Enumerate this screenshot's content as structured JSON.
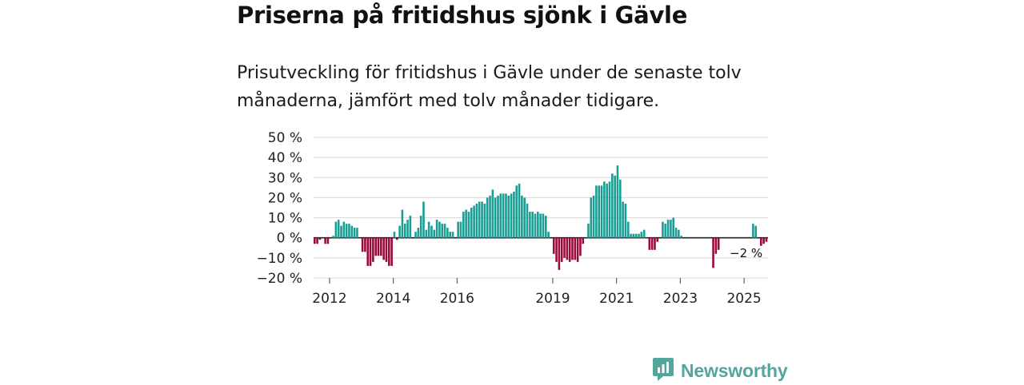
{
  "title": "Priserna på fritidshus sjönk i Gävle",
  "subtitle": "Prisutveckling för fritidshus i Gävle under de senaste tolv månaderna, jämfört med tolv månader tidigare.",
  "logo_text": "Newsworthy",
  "colors": {
    "positive": "#1a9e94",
    "negative": "#9a0a3c",
    "brand": "#53a69c"
  },
  "chart_data": {
    "type": "bar",
    "title": "Priserna på fritidshus sjönk i Gävle",
    "xlabel": "",
    "ylabel": "",
    "ylim": [
      -20,
      50
    ],
    "y_ticks": [
      50,
      40,
      30,
      20,
      10,
      0,
      -10,
      -20
    ],
    "y_tick_labels": [
      "50 %",
      "40 %",
      "30 %",
      "20 %",
      "10 %",
      "0 %",
      "−10 %",
      "−20 %"
    ],
    "x_ticks": [
      "2012",
      "2014",
      "2016",
      "2019",
      "2021",
      "2023",
      "2025"
    ],
    "grid": true,
    "annotation": "−2 %",
    "series": [
      {
        "values": [
          -3,
          -3,
          -1,
          null,
          -3,
          -3,
          null,
          1,
          8,
          9,
          6,
          8,
          7,
          7,
          6,
          5,
          5,
          null,
          -7,
          -7,
          -14,
          -14,
          -12,
          -9,
          -9,
          -9,
          -11,
          -12,
          -14,
          -14,
          3,
          -1,
          6,
          14,
          7,
          9,
          11,
          null,
          3,
          5,
          11,
          18,
          4,
          8,
          6,
          4,
          9,
          8,
          7,
          7,
          5,
          3,
          3,
          null,
          8,
          8,
          13,
          14,
          13,
          15,
          16,
          17,
          18,
          18,
          17,
          20,
          21,
          24,
          20,
          21,
          22,
          22,
          22,
          21,
          22,
          23,
          26,
          27,
          21,
          20,
          17,
          13,
          13,
          12,
          13,
          12,
          12,
          11,
          3,
          null,
          -8,
          -12,
          -16,
          -12,
          -10,
          -11,
          -12,
          -11,
          -11,
          -12,
          -9,
          -3,
          null,
          7,
          20,
          21,
          26,
          26,
          26,
          28,
          27,
          28,
          32,
          31,
          36,
          29,
          18,
          17,
          8,
          2,
          2,
          2,
          2,
          3,
          4,
          null,
          -6,
          -6,
          -6,
          -2,
          null,
          8,
          7,
          9,
          9,
          10,
          5,
          4,
          1,
          null,
          null,
          null,
          null,
          null,
          null,
          null,
          null,
          null,
          null,
          null,
          -15,
          -8,
          -6,
          null,
          null,
          null,
          null,
          null,
          null,
          null,
          null,
          null,
          null,
          null,
          null,
          7,
          6,
          null,
          -4,
          -3,
          -2
        ]
      }
    ]
  }
}
